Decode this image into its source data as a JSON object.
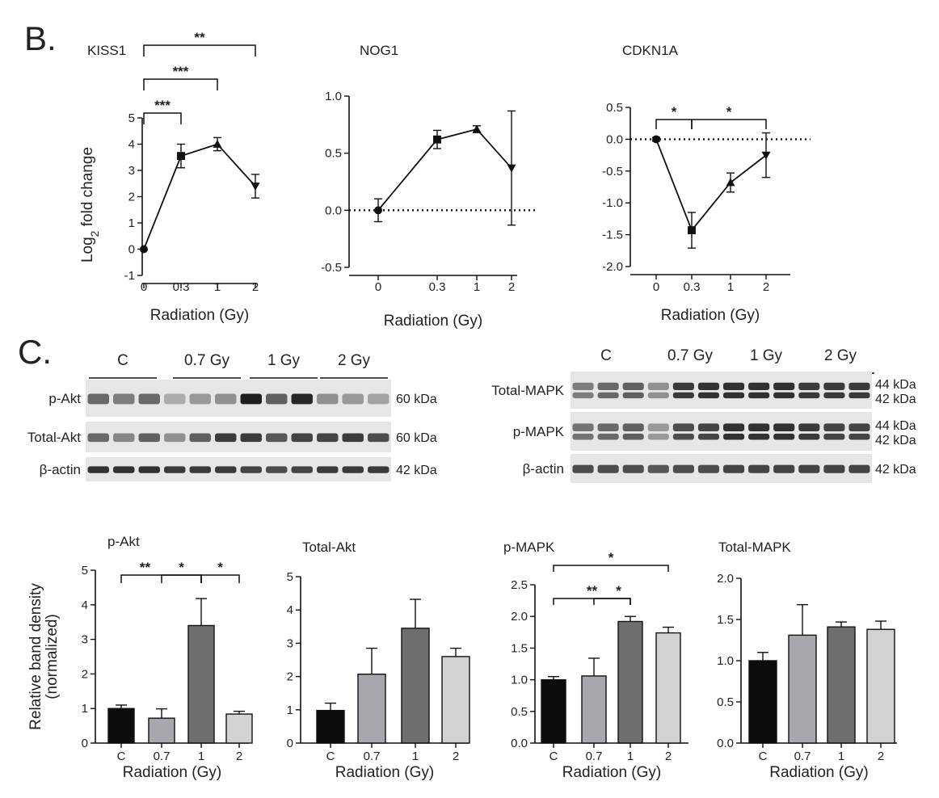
{
  "figure": {
    "panel_b_label": "B.",
    "panel_c_label": "C.",
    "bracket_color": "#111111",
    "bar_colors": [
      "#0d0d0d",
      "#a7a7ae",
      "#6e6e6e",
      "#d2d2d2"
    ]
  },
  "chart_data": [
    {
      "id": "kiss1",
      "type": "line",
      "title": "KISS1",
      "xlabel": "Radiation (Gy)",
      "ylabel_main": "Log",
      "ylabel_sub": "2",
      "ylabel_rest": " fold change",
      "categories": [
        "0",
        "0.3",
        "1",
        "2"
      ],
      "values": [
        0.0,
        3.55,
        4.0,
        2.4
      ],
      "errors": [
        0.0,
        0.45,
        0.25,
        0.45
      ],
      "markers": [
        "circle",
        "square",
        "triangle-up",
        "triangle-down"
      ],
      "ylim": [
        -1,
        5
      ],
      "yticks": [
        "-1",
        "0",
        "1",
        "2",
        "3",
        "4",
        "5"
      ],
      "zero_line": false,
      "significance": [
        {
          "from": 0,
          "to": 1,
          "label": "***"
        },
        {
          "from": 0,
          "to": 2,
          "label": "***"
        },
        {
          "from": 0,
          "to": 3,
          "label": "**"
        }
      ]
    },
    {
      "id": "nog1",
      "type": "line",
      "title": "NOG1",
      "xlabel": "Radiation (Gy)",
      "categories": [
        "0",
        "0.3",
        "1",
        "2"
      ],
      "values": [
        0.0,
        0.62,
        0.71,
        0.37
      ],
      "errors": [
        0.1,
        0.08,
        0.03,
        0.5
      ],
      "markers": [
        "circle",
        "square",
        "triangle-up",
        "triangle-down"
      ],
      "ylim": [
        -0.5,
        1.0
      ],
      "yticks": [
        "-0.5",
        "0.0",
        "0.5",
        "1.0"
      ],
      "zero_line": true,
      "significance": []
    },
    {
      "id": "cdkn1a",
      "type": "line",
      "title": "CDKN1A",
      "xlabel": "Radiation (Gy)",
      "categories": [
        "0",
        "0.3",
        "1",
        "2"
      ],
      "values": [
        0.0,
        -1.43,
        -0.68,
        -0.25
      ],
      "errors": [
        0.03,
        0.28,
        0.15,
        0.35
      ],
      "markers": [
        "circle",
        "square",
        "triangle-up",
        "triangle-down"
      ],
      "ylim": [
        -2.0,
        0.5
      ],
      "yticks": [
        "-2.0",
        "-1.5",
        "-1.0",
        "-0.5",
        "0.0",
        "0.5"
      ],
      "zero_line": true,
      "significance": [
        {
          "from": 0,
          "to": 1,
          "label": "*"
        },
        {
          "from": 1,
          "to": 3,
          "label": "*"
        }
      ]
    },
    {
      "id": "pakt",
      "type": "bar",
      "title": "p-Akt",
      "xlabel": "Radiation (Gy)",
      "ylabel_line1": "Relative band density",
      "ylabel_line2": "(normalized)",
      "categories": [
        "C",
        "0.7",
        "1",
        "2"
      ],
      "values": [
        1.0,
        0.72,
        3.4,
        0.84
      ],
      "errors": [
        0.1,
        0.27,
        0.78,
        0.08
      ],
      "ylim": [
        0,
        5
      ],
      "yticks": [
        "0",
        "1",
        "2",
        "3",
        "4",
        "5"
      ],
      "significance": [
        {
          "from": 0,
          "to": 2,
          "label": "**"
        },
        {
          "from": 1,
          "to": 2,
          "label": "*"
        },
        {
          "from": 2,
          "to": 3,
          "label": "*"
        }
      ]
    },
    {
      "id": "totalakt",
      "type": "bar",
      "title": "Total-Akt",
      "xlabel": "Radiation (Gy)",
      "categories": [
        "C",
        "0.7",
        "1",
        "2"
      ],
      "values": [
        0.98,
        2.07,
        3.45,
        2.6
      ],
      "errors": [
        0.22,
        0.78,
        0.87,
        0.25
      ],
      "ylim": [
        0,
        5
      ],
      "yticks": [
        "0",
        "1",
        "2",
        "3",
        "4",
        "5"
      ],
      "significance": []
    },
    {
      "id": "pmapk",
      "type": "bar",
      "title": "p-MAPK",
      "xlabel": "Radiation (Gy)",
      "categories": [
        "C",
        "0.7",
        "1",
        "2"
      ],
      "values": [
        1.0,
        1.06,
        1.92,
        1.74
      ],
      "errors": [
        0.05,
        0.28,
        0.08,
        0.09
      ],
      "ylim": [
        0,
        2.5
      ],
      "yticks": [
        "0.0",
        "0.5",
        "1.0",
        "1.5",
        "2.0",
        "2.5"
      ],
      "significance": [
        {
          "from": 0,
          "to": 2,
          "label": "**"
        },
        {
          "from": 1,
          "to": 2,
          "label": "*"
        },
        {
          "from": 0,
          "to": 3,
          "label": "*"
        }
      ]
    },
    {
      "id": "totalmapk",
      "type": "bar",
      "title": "Total-MAPK",
      "xlabel": "Radiation (Gy)",
      "categories": [
        "C",
        "0.7",
        "1",
        "2"
      ],
      "values": [
        1.0,
        1.31,
        1.41,
        1.38
      ],
      "errors": [
        0.1,
        0.37,
        0.06,
        0.1
      ],
      "ylim": [
        0,
        2.0
      ],
      "yticks": [
        "0.0",
        "0.5",
        "1.0",
        "1.5",
        "2.0"
      ],
      "significance": []
    }
  ],
  "blots": {
    "left": {
      "lanes": [
        "C",
        "0.7 Gy",
        "1 Gy",
        "2 Gy"
      ],
      "rows": [
        {
          "label": "p-Akt",
          "kda": "60 kDa",
          "intensity": [
            0.55,
            0.45,
            0.55,
            0.2,
            0.3,
            0.35,
            0.95,
            0.6,
            0.9,
            0.35,
            0.3,
            0.25
          ]
        },
        {
          "label": "Total-Akt",
          "kda": "60 kDa",
          "intensity": [
            0.55,
            0.4,
            0.6,
            0.35,
            0.6,
            0.8,
            0.8,
            0.65,
            0.75,
            0.75,
            0.8,
            0.7
          ]
        },
        {
          "label": "β-actin",
          "kda": "42 kDa",
          "intensity": [
            0.85,
            0.85,
            0.85,
            0.8,
            0.8,
            0.8,
            0.75,
            0.7,
            0.75,
            0.8,
            0.8,
            0.8
          ]
        }
      ]
    },
    "right": {
      "lanes": [
        "C",
        "0.7 Gy",
        "1 Gy",
        "2 Gy"
      ],
      "rows": [
        {
          "label": "Total-MAPK",
          "kda_top": "44 kDa",
          "kda_bottom": "42 kDa",
          "intensity": [
            0.45,
            0.55,
            0.6,
            0.35,
            0.8,
            0.85,
            0.85,
            0.85,
            0.85,
            0.8,
            0.8,
            0.8
          ]
        },
        {
          "label": "p-MAPK",
          "kda_top": "44 kDa",
          "kda_bottom": "42 kDa",
          "intensity": [
            0.5,
            0.55,
            0.6,
            0.3,
            0.7,
            0.75,
            0.85,
            0.85,
            0.85,
            0.8,
            0.75,
            0.75
          ]
        },
        {
          "label": "β-actin",
          "kda": "42 kDa",
          "intensity": [
            0.7,
            0.7,
            0.7,
            0.65,
            0.7,
            0.7,
            0.75,
            0.75,
            0.75,
            0.75,
            0.75,
            0.75
          ]
        }
      ]
    }
  }
}
